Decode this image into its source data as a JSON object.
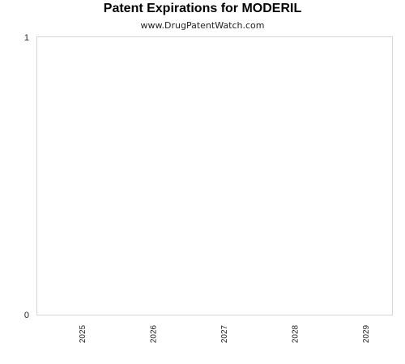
{
  "chart_data": {
    "type": "bar",
    "title": "Patent Expirations for MODERIL",
    "subtitle": "www.DrugPatentWatch.com",
    "categories": [
      "2025",
      "2026",
      "2027",
      "2028",
      "2029"
    ],
    "values": [
      0,
      0,
      0,
      0,
      0
    ],
    "xlabel": "",
    "ylabel": "",
    "ylim": [
      0,
      1
    ],
    "y_ticks": [
      "0",
      "1"
    ],
    "grid": false,
    "legend": "none",
    "colors": {
      "plot_border": "#d6d6d6",
      "bar": "#4a7ebb"
    }
  }
}
